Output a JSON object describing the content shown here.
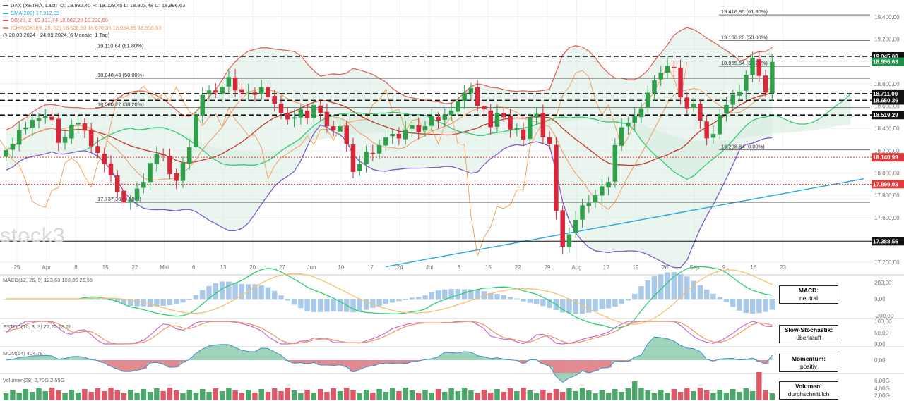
{
  "legend": {
    "title": "DAX (XETRA, Last)",
    "ohlc": "O: 18.982,40  H: 19.029,45  L: 18.903,48  C: 18.996,63",
    "sma": "SMA(200)  17.912,09",
    "bb": "BB(20, 2)  19.131,74  18.682,20  18.232,66",
    "ichimoku": "ICHIMOKU(9, 26, 52)  18.626,90  18.670,36  18.034,89  18.956,63",
    "period": "20.03.2024 - 24.09.2024  (6 Monate, 1 Tag)"
  },
  "watermark": "stock3",
  "panels": {
    "macd": {
      "label": "MACD(12, 26, 9)  123,63  103,35  26,55",
      "box_l1": "MACD:",
      "box_l2": "neutral",
      "ticks": [
        "200,00",
        "0,00",
        "-200,00"
      ]
    },
    "stoch": {
      "label": "SSTOC(10, 3, 3)  77,22  78,26",
      "box_l1": "Slow-Stochastik:",
      "box_l2": "überkauft",
      "ticks": [
        "100,00",
        "50,00",
        "0,00"
      ]
    },
    "mom": {
      "label": "MOM(14)  404,78",
      "box_l1": "Momentum:",
      "box_l2": "positiv",
      "ticks": [
        "0,00"
      ]
    },
    "vol": {
      "label": "Volumen(28)  2,70G  2,55G",
      "box_l1": "Volumen:",
      "box_l2": "durchschnittlich",
      "ticks": [
        "6,00G",
        "4,00G",
        "2,00G"
      ]
    }
  },
  "colors": {
    "up": "#2fa04a",
    "down": "#d62839",
    "bbLine": "#e3625a",
    "bbFill": "#d8ece2",
    "sma": "#29a9d8",
    "cloud": "#dff0e6",
    "tenkan": "#f0965a",
    "kijun": "#c0392b",
    "chikou": "#f5a25d",
    "spanA": "#2ecc71",
    "spanB": "#7b59c9",
    "macdLine": "#2ecc71",
    "macdSignal": "#f5c16c",
    "histUp": "#9fc3e8",
    "stochK": "#c46bd6",
    "stochD": "#f0965a",
    "momUp": "#7fc6a4",
    "momDown": "#ee7d8a",
    "volBar": "#4aa86a",
    "volDown": "#e05767"
  },
  "chart_data": {
    "type": "candlestick",
    "title": "DAX (XETRA, Last)",
    "ylim": [
      17100,
      19550
    ],
    "y_ticks": [
      "19.400,00",
      "19.200,00",
      "19.000,00",
      "18.800,00",
      "18.600,00",
      "18.400,00",
      "18.200,00",
      "18.000,00",
      "17.800,00",
      "17.600,00",
      "17.400,00",
      "17.200,00"
    ],
    "x_ticks": [
      "25",
      "Apr",
      "8",
      "15",
      "22",
      "Mai",
      "6",
      "13",
      "20",
      "27",
      "Jun",
      "10",
      "17",
      "24",
      "Jul",
      "8",
      "15",
      "22",
      "29",
      "Aug",
      "12",
      "19",
      "26",
      "Sep",
      "9",
      "16",
      "23"
    ],
    "fibo_levels": [
      {
        "label": "19.416,85 (61.80%)",
        "value": 19416.85
      },
      {
        "label": "19.186,20 (50.00%)",
        "value": 19186.2
      },
      {
        "label": "19.110,64 (61.80%)",
        "value": 19110.64
      },
      {
        "label": "18.955,54 (38.20%)",
        "value": 18955.54
      },
      {
        "label": "18.848,43 (50.00%)",
        "value": 18848.43
      },
      {
        "label": "18.586,22 (38.20%)",
        "value": 18586.22
      },
      {
        "label": "18.208,84 (0.00%)",
        "value": 18208.84
      },
      {
        "label": "17.737,36 (0.00%)",
        "value": 17737.36
      }
    ],
    "support_resistance": [
      {
        "label": "19.045,00",
        "value": 19045,
        "style": "dashed"
      },
      {
        "label": "18.711,00",
        "value": 18711,
        "style": "dashed"
      },
      {
        "label": "18.650,36",
        "value": 18650.36,
        "style": "dashed"
      },
      {
        "label": "18.519,29",
        "value": 18519.29,
        "style": "dashed"
      },
      {
        "label": "18.140,99",
        "value": 18140.99,
        "style": "red"
      },
      {
        "label": "17.899,93",
        "value": 17899.93,
        "style": "red"
      },
      {
        "label": "17.388,55",
        "value": 17388.55,
        "style": "solid"
      }
    ],
    "last_price": {
      "label": "18.996,63",
      "value": 18996.63
    },
    "close": [
      18205,
      18260,
      18384,
      18408,
      18477,
      18492,
      18510,
      18477,
      18270,
      18318,
      18430,
      18450,
      18380,
      18240,
      18180,
      18080,
      17980,
      17830,
      17740,
      17760,
      17860,
      17920,
      18090,
      18170,
      18160,
      17990,
      17930,
      18090,
      18230,
      18520,
      18700,
      18740,
      18720,
      18770,
      18860,
      18740,
      18720,
      18730,
      18700,
      18770,
      18680,
      18620,
      18540,
      18480,
      18500,
      18570,
      18490,
      18610,
      18540,
      18420,
      18380,
      18420,
      18260,
      18010,
      18080,
      18190,
      18170,
      18250,
      18320,
      18350,
      18310,
      18390,
      18430,
      18370,
      18420,
      18510,
      18470,
      18520,
      18560,
      18640,
      18720,
      18760,
      18600,
      18570,
      18410,
      18540,
      18500,
      18390,
      18400,
      18300,
      18500,
      18530,
      18320,
      18260,
      17660,
      17340,
      17450,
      17580,
      17710,
      17730,
      17800,
      17880,
      17920,
      18250,
      18410,
      18450,
      18510,
      18580,
      18720,
      18830,
      18900,
      18960,
      18940,
      18680,
      18580,
      18620,
      18470,
      18310,
      18350,
      18520,
      18610,
      18700,
      18730,
      18880,
      19030,
      18870,
      18720,
      18996
    ]
  }
}
